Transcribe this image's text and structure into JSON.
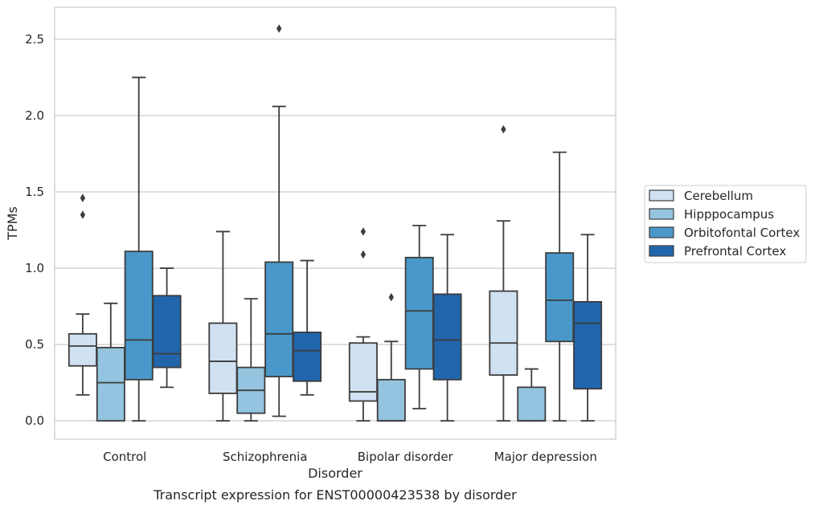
{
  "chart_data": {
    "type": "box",
    "title": "",
    "caption": "Transcript expression for ENST00000423538 by disorder",
    "xlabel": "Disorder",
    "ylabel": "TPMs",
    "ylim": [
      -0.12,
      2.71
    ],
    "yticks": [
      "0.0",
      "0.5",
      "1.0",
      "1.5",
      "2.0",
      "2.5"
    ],
    "grid": "horizontal",
    "legend_position": "right",
    "categories": [
      "Control",
      "Schizophrenia",
      "Bipolar disorder",
      "Major depression"
    ],
    "series": [
      {
        "name": "Cerebellum",
        "color": "#d0e1f2",
        "boxes": [
          {
            "whislo": 0.17,
            "q1": 0.36,
            "med": 0.49,
            "q3": 0.57,
            "whishi": 0.7,
            "fliers": [
              1.35,
              1.46
            ]
          },
          {
            "whislo": 0.0,
            "q1": 0.18,
            "med": 0.39,
            "q3": 0.64,
            "whishi": 1.24,
            "fliers": []
          },
          {
            "whislo": 0.0,
            "q1": 0.13,
            "med": 0.19,
            "q3": 0.51,
            "whishi": 0.55,
            "fliers": [
              1.09,
              1.24
            ]
          },
          {
            "whislo": 0.0,
            "q1": 0.3,
            "med": 0.51,
            "q3": 0.85,
            "whishi": 1.31,
            "fliers": [
              1.91
            ]
          }
        ]
      },
      {
        "name": "Hipppocampus",
        "color": "#94c4df",
        "boxes": [
          {
            "whislo": 0.0,
            "q1": 0.0,
            "med": 0.25,
            "q3": 0.48,
            "whishi": 0.77,
            "fliers": []
          },
          {
            "whislo": 0.0,
            "q1": 0.05,
            "med": 0.2,
            "q3": 0.35,
            "whishi": 0.8,
            "fliers": []
          },
          {
            "whislo": 0.0,
            "q1": 0.0,
            "med": 0.0,
            "q3": 0.27,
            "whishi": 0.52,
            "fliers": [
              0.81
            ]
          },
          {
            "whislo": 0.0,
            "q1": 0.0,
            "med": 0.0,
            "q3": 0.22,
            "whishi": 0.34,
            "fliers": []
          }
        ]
      },
      {
        "name": "Orbitofontal Cortex",
        "color": "#4a98c9",
        "boxes": [
          {
            "whislo": 0.0,
            "q1": 0.27,
            "med": 0.53,
            "q3": 1.11,
            "whishi": 2.25,
            "fliers": []
          },
          {
            "whislo": 0.03,
            "q1": 0.29,
            "med": 0.57,
            "q3": 1.04,
            "whishi": 2.06,
            "fliers": [
              2.57
            ]
          },
          {
            "whislo": 0.08,
            "q1": 0.34,
            "med": 0.72,
            "q3": 1.07,
            "whishi": 1.28,
            "fliers": []
          },
          {
            "whislo": 0.0,
            "q1": 0.52,
            "med": 0.79,
            "q3": 1.1,
            "whishi": 1.76,
            "fliers": []
          }
        ]
      },
      {
        "name": "Prefrontal Cortex",
        "color": "#2166ac",
        "boxes": [
          {
            "whislo": 0.22,
            "q1": 0.35,
            "med": 0.44,
            "q3": 0.82,
            "whishi": 1.0,
            "fliers": []
          },
          {
            "whislo": 0.17,
            "q1": 0.26,
            "med": 0.46,
            "q3": 0.58,
            "whishi": 1.05,
            "fliers": []
          },
          {
            "whislo": 0.0,
            "q1": 0.27,
            "med": 0.53,
            "q3": 0.83,
            "whishi": 1.22,
            "fliers": []
          },
          {
            "whislo": 0.0,
            "q1": 0.21,
            "med": 0.64,
            "q3": 0.78,
            "whishi": 1.22,
            "fliers": []
          }
        ]
      }
    ]
  }
}
